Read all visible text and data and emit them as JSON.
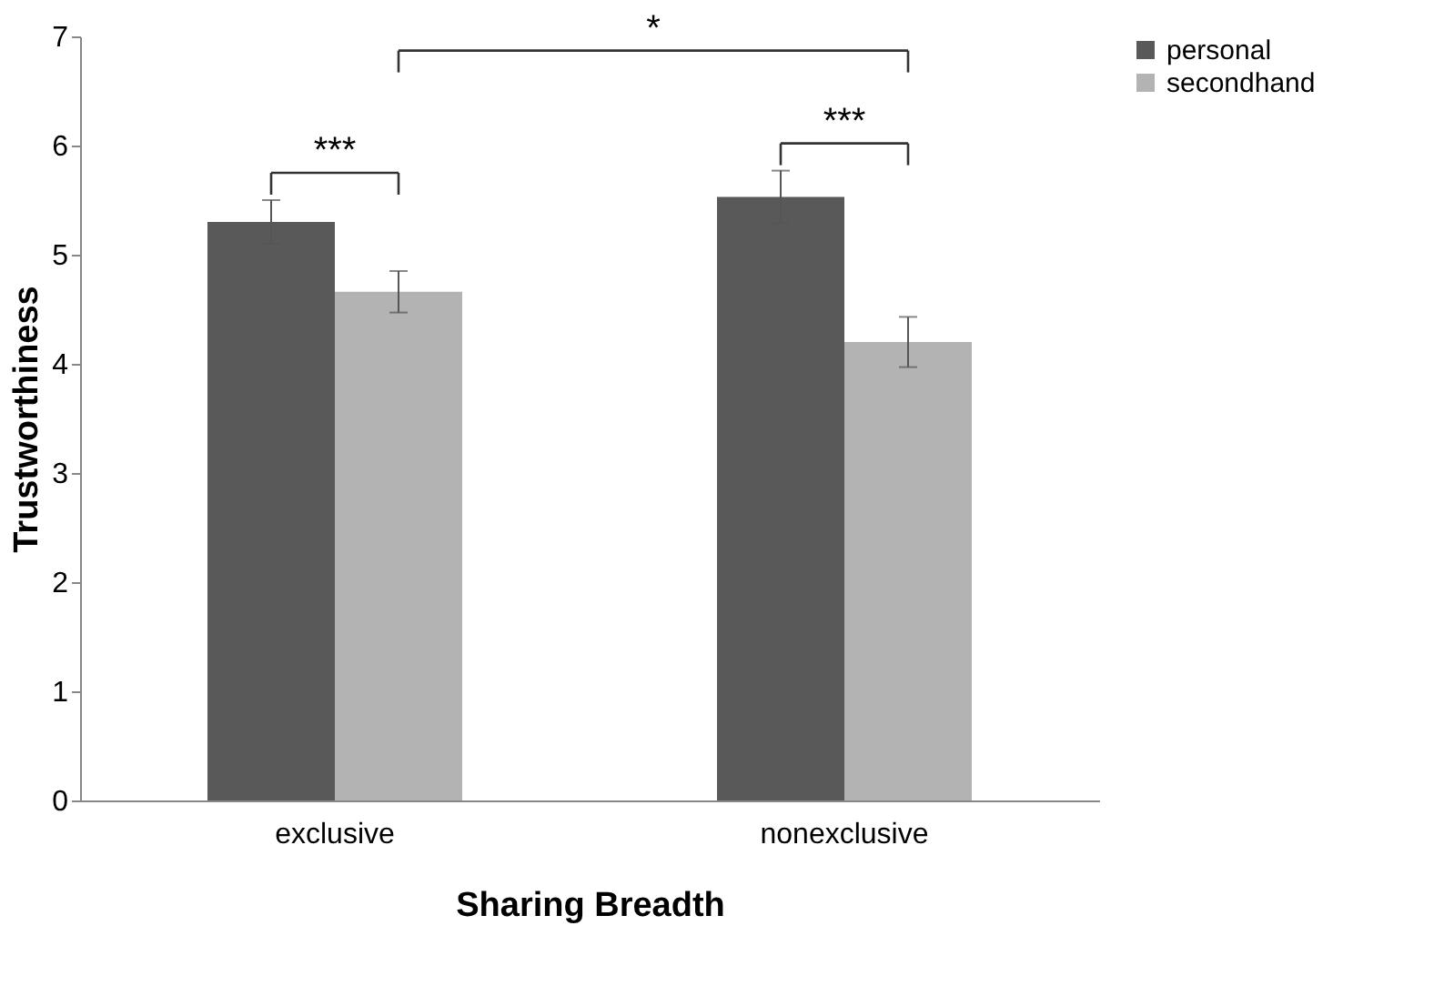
{
  "chart_data": {
    "type": "bar",
    "xlabel": "Sharing Breadth",
    "ylabel": "Trustworthiness",
    "categories": [
      "exclusive",
      "nonexclusive"
    ],
    "series": [
      {
        "name": "personal",
        "color": "#595959",
        "values": [
          5.3,
          5.53
        ],
        "errors": [
          0.2,
          0.24
        ]
      },
      {
        "name": "secondhand",
        "color": "#b3b3b3",
        "values": [
          4.66,
          4.2
        ],
        "errors": [
          0.19,
          0.23
        ]
      }
    ],
    "ylim": [
      0,
      7
    ],
    "yticks": [
      0,
      1,
      2,
      3,
      4,
      5,
      6,
      7
    ],
    "grid": false,
    "legend": "right",
    "annotations": [
      "***",
      "*",
      "***"
    ]
  }
}
